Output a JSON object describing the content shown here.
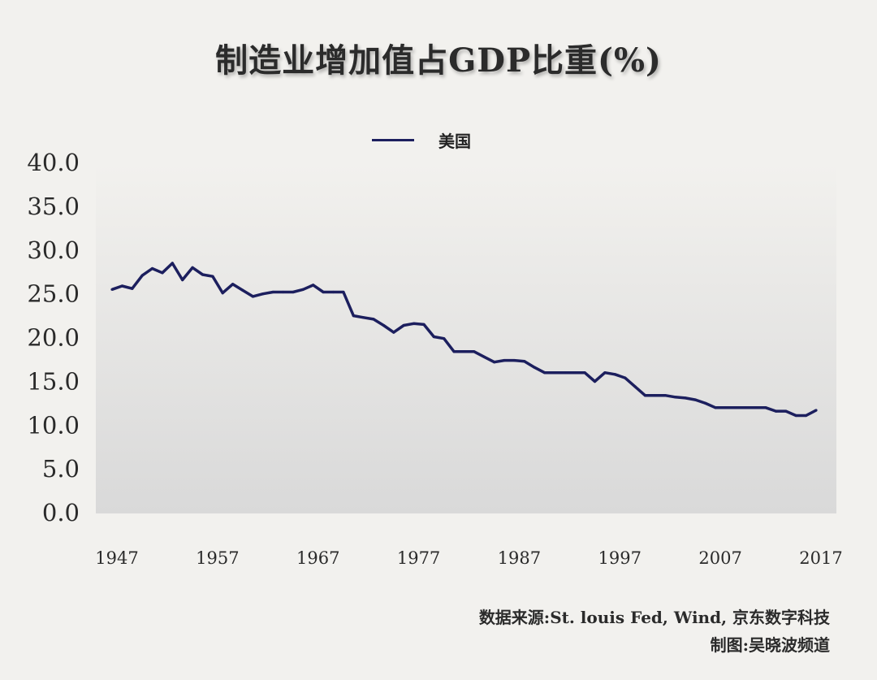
{
  "title": "制造业增加值占GDP比重(%)",
  "legend": {
    "label": "美国",
    "color": "#1c1f5e"
  },
  "source": "数据来源:St. louis Fed, Wind, 京东数字科技",
  "credit": "制图:吴晓波频道",
  "chart_data": {
    "type": "line",
    "title": "制造业增加值占GDP比重(%)",
    "xlabel": "",
    "ylabel": "",
    "ylim": [
      0,
      40
    ],
    "y_ticks": [
      "0.0",
      "5.0",
      "10.0",
      "15.0",
      "20.0",
      "25.0",
      "30.0",
      "35.0",
      "40.0"
    ],
    "x_ticks": [
      "1947",
      "1957",
      "1967",
      "1977",
      "1987",
      "1997",
      "2007",
      "2017"
    ],
    "x_range": [
      1947,
      2017
    ],
    "grid": false,
    "legend_position": "top-center",
    "series": [
      {
        "name": "美国",
        "color": "#1c1f5e",
        "x": [
          1947,
          1948,
          1949,
          1950,
          1951,
          1952,
          1953,
          1954,
          1955,
          1956,
          1957,
          1958,
          1959,
          1960,
          1961,
          1962,
          1963,
          1964,
          1965,
          1966,
          1967,
          1968,
          1969,
          1970,
          1971,
          1972,
          1973,
          1974,
          1975,
          1976,
          1977,
          1978,
          1979,
          1980,
          1981,
          1982,
          1983,
          1984,
          1985,
          1986,
          1987,
          1988,
          1989,
          1990,
          1991,
          1992,
          1993,
          1994,
          1995,
          1996,
          1997,
          1998,
          1999,
          2000,
          2001,
          2002,
          2003,
          2004,
          2005,
          2006,
          2007,
          2008,
          2009,
          2010,
          2011,
          2012,
          2013,
          2014,
          2015,
          2016,
          2017
        ],
        "values": [
          25.4,
          25.8,
          25.5,
          27.0,
          27.8,
          27.3,
          28.4,
          26.5,
          27.9,
          27.1,
          26.9,
          25.0,
          26.0,
          25.3,
          24.6,
          24.9,
          25.1,
          25.1,
          25.1,
          25.4,
          25.9,
          25.1,
          25.1,
          25.1,
          22.4,
          22.2,
          22.0,
          21.3,
          20.5,
          21.3,
          21.5,
          21.4,
          20.0,
          19.8,
          18.3,
          18.3,
          18.3,
          17.7,
          17.1,
          17.3,
          17.3,
          17.2,
          16.5,
          15.9,
          15.9,
          15.9,
          15.9,
          15.9,
          14.9,
          15.9,
          15.7,
          15.3,
          14.3,
          13.3,
          13.3,
          13.3,
          13.1,
          13.0,
          12.8,
          12.4,
          11.9,
          11.9,
          11.9,
          11.9,
          11.9,
          11.9,
          11.5,
          11.5,
          11.0,
          11.0,
          11.6
        ]
      }
    ]
  }
}
